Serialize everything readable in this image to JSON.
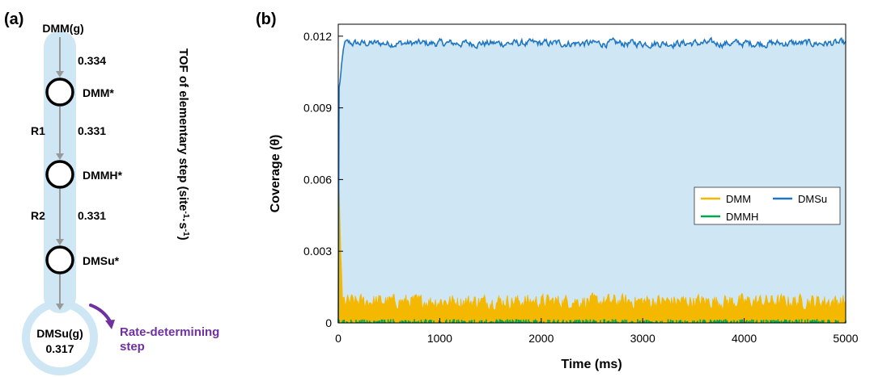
{
  "panel_a": {
    "label": "(a)",
    "top_species": "DMM(g)",
    "nodes": [
      "DMM*",
      "DMMH*",
      "DMSu*"
    ],
    "bottom_species": "DMSu(g)",
    "bottom_value": "0.317",
    "tof_values": [
      "0.334",
      "0.331",
      "0.331"
    ],
    "reaction_labels": [
      "R1",
      "R2"
    ],
    "vertical_label_prefix": "TOF of elementary step (site",
    "vertical_label_sup1": "-1",
    "vertical_label_mid": "·s",
    "vertical_label_sup2": "-1",
    "vertical_label_suffix": ")",
    "rds_line1": "Rate-determining",
    "rds_line2": "step",
    "colors": {
      "pathway": "#cfe6f5",
      "arrow": "#999999",
      "rds": "#7030a0"
    }
  },
  "panel_b": {
    "label": "(b)"
  },
  "chart_data": {
    "type": "line",
    "xlabel": "Time (ms)",
    "ylabel": "Coverage (θ)",
    "xlim": [
      0,
      5000
    ],
    "ylim": [
      0,
      0.0125
    ],
    "xticks": [
      "0",
      "1000",
      "2000",
      "3000",
      "4000",
      "5000"
    ],
    "yticks": [
      "0",
      "0.003",
      "0.006",
      "0.009",
      "0.012"
    ],
    "legend_position": "center-right",
    "series": [
      {
        "name": "DMM",
        "color": "#f5b800",
        "fill": true,
        "mean": 0.0009,
        "amplitude": 0.0004,
        "initial_peak": 0.0068
      },
      {
        "name": "DMMH",
        "color": "#00a650",
        "fill": true,
        "mean": 0.0001,
        "amplitude": 0.0001
      },
      {
        "name": "DMSu",
        "color": "#1f77c4",
        "fill": true,
        "fill_color": "#cfe6f5",
        "mean": 0.0117,
        "amplitude": 0.0003,
        "initial_value": 0.0095
      }
    ]
  }
}
